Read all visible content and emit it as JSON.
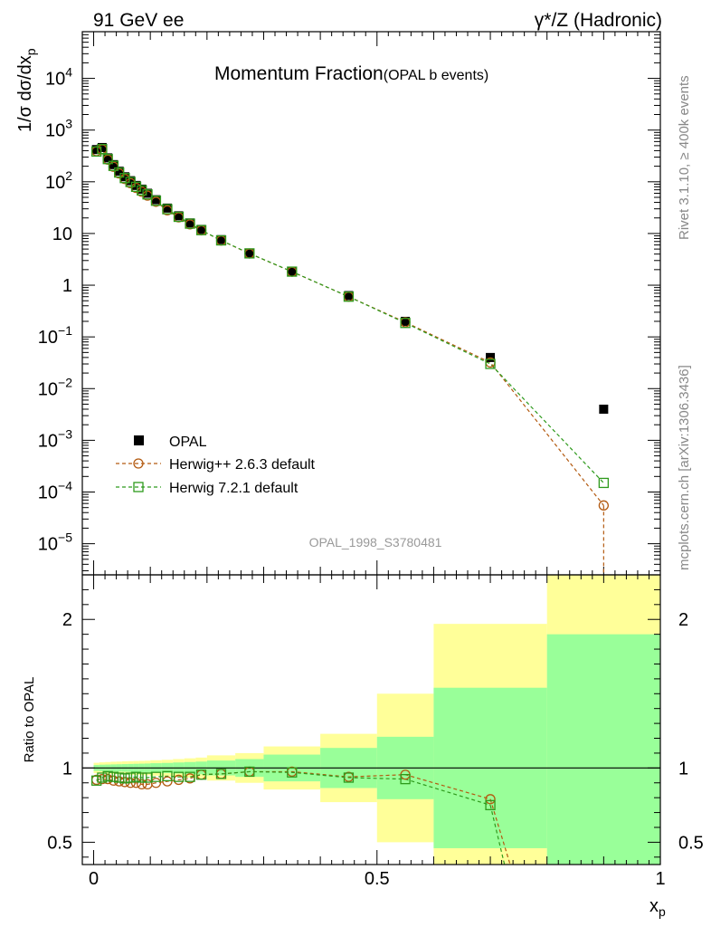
{
  "header": {
    "left": "91 GeV ee",
    "right": "γ*/Z (Hadronic)"
  },
  "title": {
    "main": "Momentum Fraction",
    "sub": "(OPAL b events)"
  },
  "side_labels": {
    "rivet": "Rivet 3.1.10, ≥ 400k events",
    "mcplots": "mcplots.cern.ch [arXiv:1306.3436]"
  },
  "watermark": "OPAL_1998_S3780481",
  "legend": {
    "data": "OPAL",
    "mc1": "Herwig++ 2.6.3 default",
    "mc2": "Herwig 7.2.1 default"
  },
  "colors": {
    "data": "#000000",
    "mc1": "#b35a10",
    "mc2": "#2e9a1c",
    "band_outer": "#ffff99",
    "band_inner": "#99ff99"
  },
  "chart_data": {
    "type": "scatter",
    "main": {
      "ylabel": "1/σ dσ/dx_p",
      "yscale": "log",
      "ylim": [
        2.5e-06,
        80000.0
      ],
      "ytick_values": [
        1e-05,
        0.0001,
        0.001,
        0.01,
        0.1,
        1,
        10,
        100,
        1000,
        10000
      ],
      "ytick_labels": [
        {
          "base": "10",
          "exp": "−5"
        },
        {
          "base": "10",
          "exp": "−4"
        },
        {
          "base": "10",
          "exp": "−3"
        },
        {
          "base": "10",
          "exp": "−2"
        },
        {
          "base": "10",
          "exp": "−1"
        },
        {
          "base": "1",
          "exp": ""
        },
        {
          "base": "10",
          "exp": ""
        },
        {
          "base": "10",
          "exp": "2"
        },
        {
          "base": "10",
          "exp": "3"
        },
        {
          "base": "10",
          "exp": "4"
        }
      ],
      "series": [
        {
          "name": "OPAL",
          "x": [
            0.005,
            0.015,
            0.025,
            0.035,
            0.045,
            0.055,
            0.065,
            0.075,
            0.085,
            0.095,
            0.11,
            0.13,
            0.15,
            0.17,
            0.19,
            0.225,
            0.275,
            0.35,
            0.45,
            0.55,
            0.7,
            0.9
          ],
          "y": [
            420,
            460,
            290,
            215,
            160,
            125,
            105,
            85,
            72,
            60,
            45,
            31,
            22,
            16,
            12,
            7.6,
            4.2,
            1.85,
            0.63,
            0.2,
            0.04,
            0.004
          ]
        },
        {
          "name": "Herwig++ 2.6.3 default",
          "x": [
            0.005,
            0.015,
            0.025,
            0.035,
            0.045,
            0.055,
            0.065,
            0.075,
            0.085,
            0.095,
            0.11,
            0.13,
            0.15,
            0.17,
            0.19,
            0.225,
            0.275,
            0.35,
            0.45,
            0.55,
            0.7,
            0.9
          ],
          "y": [
            390,
            425,
            268,
            195,
            145,
            113,
            94,
            76,
            64,
            54,
            41,
            28,
            20.5,
            15,
            11.5,
            7.3,
            4.1,
            1.82,
            0.6,
            0.192,
            0.032,
            5.5e-05
          ]
        },
        {
          "name": "Herwig 7.2.1 default",
          "x": [
            0.005,
            0.015,
            0.025,
            0.035,
            0.045,
            0.055,
            0.065,
            0.075,
            0.085,
            0.095,
            0.11,
            0.13,
            0.15,
            0.17,
            0.19,
            0.225,
            0.275,
            0.35,
            0.45,
            0.55,
            0.7,
            0.9
          ],
          "y": [
            385,
            430,
            275,
            203,
            151,
            118,
            99,
            80,
            68,
            57,
            43,
            29.5,
            21,
            15.5,
            11.6,
            7.35,
            4.12,
            1.83,
            0.6,
            0.186,
            0.03,
            0.00015
          ]
        }
      ]
    },
    "ratio": {
      "ylabel": "Ratio to OPAL",
      "ylim": [
        0.35,
        2.3
      ],
      "ytick_values": [
        0.5,
        1,
        2
      ],
      "ytick_labels": [
        "0.5",
        "1",
        "2"
      ],
      "bins": [
        0,
        0.01,
        0.02,
        0.03,
        0.04,
        0.05,
        0.06,
        0.07,
        0.08,
        0.09,
        0.1,
        0.12,
        0.14,
        0.16,
        0.18,
        0.2,
        0.25,
        0.3,
        0.4,
        0.5,
        0.6,
        0.8,
        1.0
      ],
      "band_outer": [
        [
          0.965,
          1.035
        ],
        [
          0.962,
          1.038
        ],
        [
          0.96,
          1.04
        ],
        [
          0.958,
          1.042
        ],
        [
          0.957,
          1.043
        ],
        [
          0.955,
          1.045
        ],
        [
          0.954,
          1.046
        ],
        [
          0.953,
          1.047
        ],
        [
          0.952,
          1.048
        ],
        [
          0.951,
          1.049
        ],
        [
          0.948,
          1.052
        ],
        [
          0.945,
          1.055
        ],
        [
          0.94,
          1.06
        ],
        [
          0.935,
          1.065
        ],
        [
          0.93,
          1.07
        ],
        [
          0.915,
          1.085
        ],
        [
          0.9,
          1.1
        ],
        [
          0.855,
          1.145
        ],
        [
          0.77,
          1.23
        ],
        [
          0.5,
          1.5
        ],
        [
          0.35,
          1.97
        ],
        [
          0.35,
          2.3
        ]
      ],
      "band_inner": [
        [
          0.98,
          1.02
        ],
        [
          0.978,
          1.022
        ],
        [
          0.977,
          1.023
        ],
        [
          0.976,
          1.024
        ],
        [
          0.975,
          1.025
        ],
        [
          0.974,
          1.026
        ],
        [
          0.973,
          1.027
        ],
        [
          0.972,
          1.028
        ],
        [
          0.971,
          1.029
        ],
        [
          0.97,
          1.03
        ],
        [
          0.968,
          1.032
        ],
        [
          0.966,
          1.034
        ],
        [
          0.963,
          1.037
        ],
        [
          0.96,
          1.04
        ],
        [
          0.957,
          1.043
        ],
        [
          0.95,
          1.05
        ],
        [
          0.94,
          1.06
        ],
        [
          0.91,
          1.09
        ],
        [
          0.865,
          1.135
        ],
        [
          0.79,
          1.21
        ],
        [
          0.46,
          1.54
        ],
        [
          0.35,
          1.9
        ]
      ],
      "series": [
        {
          "name": "Herwig++ 2.6.3 default",
          "x": [
            0.005,
            0.015,
            0.025,
            0.035,
            0.045,
            0.055,
            0.065,
            0.075,
            0.085,
            0.095,
            0.11,
            0.13,
            0.15,
            0.17,
            0.19,
            0.225,
            0.275,
            0.35,
            0.45,
            0.55,
            0.7
          ],
          "y": [
            0.92,
            0.925,
            0.925,
            0.915,
            0.91,
            0.905,
            0.9,
            0.9,
            0.89,
            0.89,
            0.9,
            0.91,
            0.92,
            0.93,
            0.955,
            0.96,
            0.975,
            0.975,
            0.94,
            0.955,
            0.79
          ],
          "tail_x": [
            0.7,
            0.735
          ],
          "tail_y": [
            0.79,
            0.35
          ]
        },
        {
          "name": "Herwig 7.2.1 default",
          "x": [
            0.005,
            0.015,
            0.025,
            0.035,
            0.045,
            0.055,
            0.065,
            0.075,
            0.085,
            0.095,
            0.11,
            0.13,
            0.15,
            0.17,
            0.19,
            0.225,
            0.275,
            0.35,
            0.45,
            0.55,
            0.7
          ],
          "y": [
            0.915,
            0.935,
            0.945,
            0.94,
            0.935,
            0.93,
            0.935,
            0.94,
            0.935,
            0.935,
            0.94,
            0.945,
            0.94,
            0.94,
            0.955,
            0.96,
            0.975,
            0.97,
            0.935,
            0.925,
            0.75
          ],
          "tail_x": [
            0.7,
            0.725
          ],
          "tail_y": [
            0.75,
            0.35
          ]
        }
      ]
    },
    "x": {
      "label": "x_p",
      "xlim": [
        -0.02,
        1.0
      ],
      "tick_values": [
        0,
        0.5,
        1
      ],
      "tick_labels": [
        "0",
        "0.5",
        "1"
      ]
    }
  }
}
